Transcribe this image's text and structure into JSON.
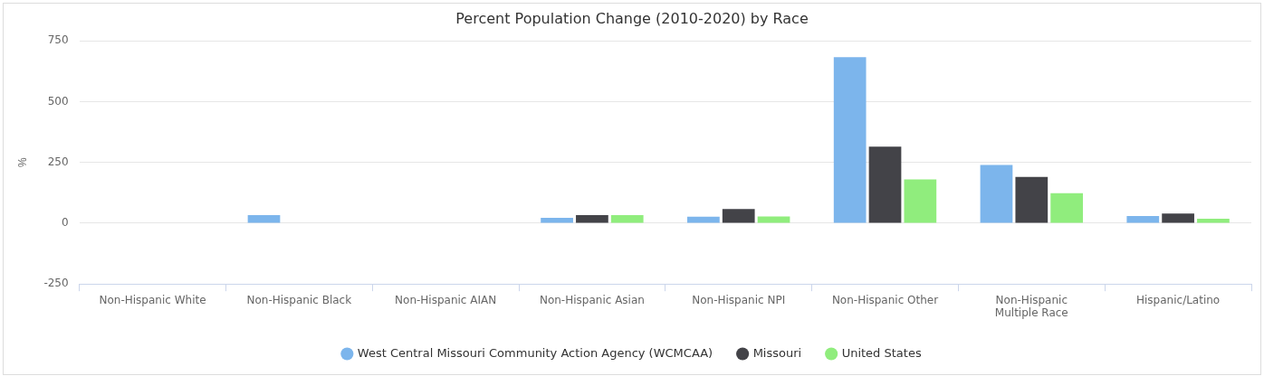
{
  "chart_data": {
    "type": "bar",
    "title": "Percent Population Change (2010-2020) by Race",
    "ylabel": "%",
    "categories": [
      "Non-Hispanic White",
      "Non-Hispanic Black",
      "Non-Hispanic AIAN",
      "Non-Hispanic Asian",
      "Non-Hispanic NPI",
      "Non-Hispanic Other",
      "Non-Hispanic Multiple Race",
      "Hispanic/Latino"
    ],
    "series": [
      {
        "name": "West Central Missouri Community Action Agency (WCMCAA)",
        "color": "#7cb5ec",
        "values": [
          null,
          33,
          0,
          22,
          27,
          683,
          240,
          30
        ]
      },
      {
        "name": "Missouri",
        "color": "#434348",
        "values": [
          null,
          null,
          0,
          33,
          58,
          315,
          190,
          40
        ]
      },
      {
        "name": "United States",
        "color": "#90ed7d",
        "values": [
          null,
          null,
          0,
          33,
          28,
          180,
          123,
          18
        ]
      }
    ],
    "ylim": [
      -250,
      750
    ],
    "yticks": [
      -250,
      0,
      250,
      500,
      750
    ],
    "grid": "y",
    "legend": "bottom"
  }
}
